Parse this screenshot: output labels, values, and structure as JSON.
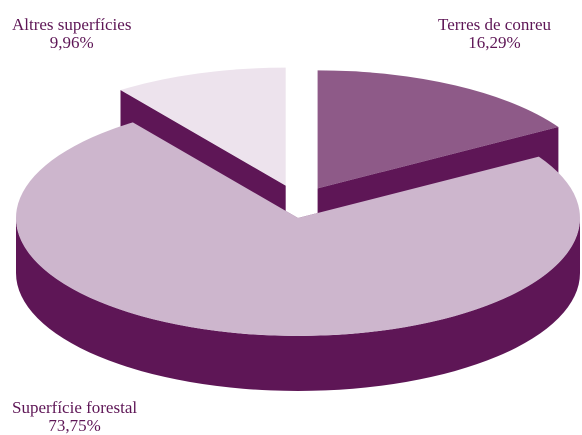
{
  "chart_data": {
    "type": "pie",
    "style": "3d-exploded",
    "slices": [
      {
        "label": "Terres de conreu",
        "value": 16.29,
        "value_text": "16,29%",
        "color": "#8e5a88",
        "side_color": "#5e1656"
      },
      {
        "label": "Superfície forestal",
        "value": 73.75,
        "value_text": "73,75%",
        "color": "#cdb6cd",
        "side_color": "#5e1656"
      },
      {
        "label": "Altres superfícies",
        "value": 9.96,
        "value_text": "9,96%",
        "color": "#ede3ed",
        "side_color": "#5e1656"
      }
    ],
    "label_color": "#5e1656"
  }
}
